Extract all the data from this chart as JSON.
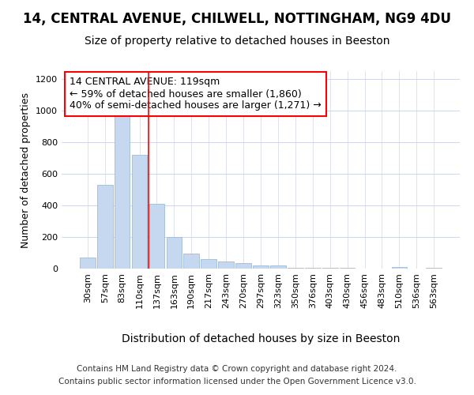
{
  "title1": "14, CENTRAL AVENUE, CHILWELL, NOTTINGHAM, NG9 4DU",
  "title2": "Size of property relative to detached houses in Beeston",
  "xlabel": "Distribution of detached houses by size in Beeston",
  "ylabel": "Number of detached properties",
  "categories": [
    "30sqm",
    "57sqm",
    "83sqm",
    "110sqm",
    "137sqm",
    "163sqm",
    "190sqm",
    "217sqm",
    "243sqm",
    "270sqm",
    "297sqm",
    "323sqm",
    "350sqm",
    "376sqm",
    "403sqm",
    "430sqm",
    "456sqm",
    "483sqm",
    "510sqm",
    "536sqm",
    "563sqm"
  ],
  "values": [
    70,
    530,
    1000,
    720,
    410,
    200,
    95,
    60,
    45,
    35,
    20,
    20,
    5,
    3,
    3,
    3,
    2,
    2,
    10,
    2,
    5
  ],
  "bar_color": "#c5d8f0",
  "bar_edge_color": "#a0bcd8",
  "vline_x": 3.5,
  "vline_color": "red",
  "annotation_line1": "14 CENTRAL AVENUE: 119sqm",
  "annotation_line2": "← 59% of detached houses are smaller (1,860)",
  "annotation_line3": "40% of semi-detached houses are larger (1,271) →",
  "annotation_box_color": "white",
  "annotation_border_color": "red",
  "ylim": [
    0,
    1250
  ],
  "yticks": [
    0,
    200,
    400,
    600,
    800,
    1000,
    1200
  ],
  "footer1": "Contains HM Land Registry data © Crown copyright and database right 2024.",
  "footer2": "Contains public sector information licensed under the Open Government Licence v3.0.",
  "bg_color": "#ffffff",
  "plot_bg_color": "#ffffff",
  "title1_fontsize": 12,
  "title2_fontsize": 10,
  "xlabel_fontsize": 10,
  "ylabel_fontsize": 9,
  "tick_fontsize": 8,
  "footer_fontsize": 7.5,
  "annotation_fontsize": 9
}
